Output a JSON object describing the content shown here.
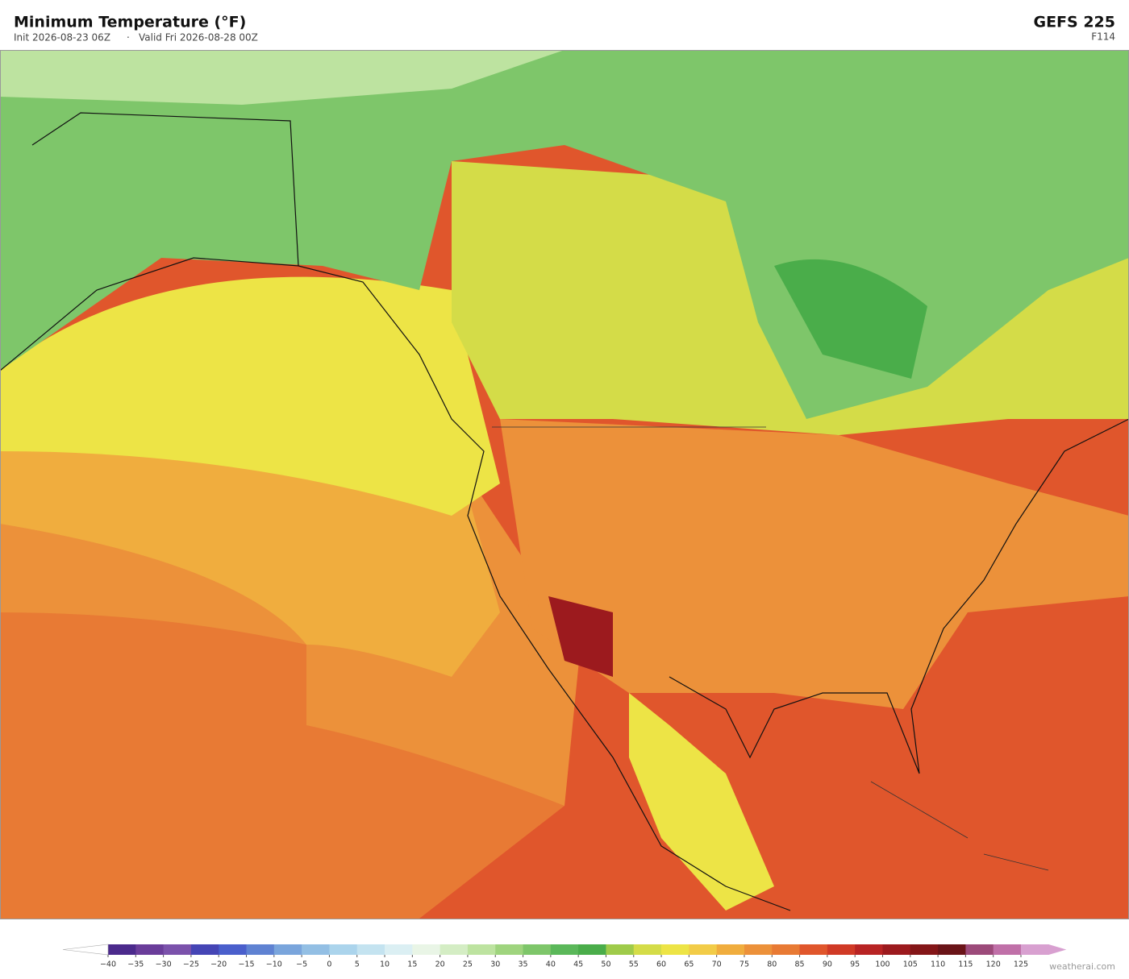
{
  "header": {
    "title": "Minimum Temperature  (°F)",
    "init": "Init 2026-08-23 06Z",
    "separator": "·",
    "valid": "Valid Fri 2026-08-28 00Z",
    "model": "GEFS  225",
    "forecast_hour": "F114"
  },
  "colorbar": {
    "ticks": [
      {
        "value": -40,
        "label": "−40"
      },
      {
        "value": -35,
        "label": "−35"
      },
      {
        "value": -30,
        "label": "−30"
      },
      {
        "value": -25,
        "label": "−25"
      },
      {
        "value": -20,
        "label": "−20"
      },
      {
        "value": -15,
        "label": "−15"
      },
      {
        "value": -10,
        "label": "−10"
      },
      {
        "value": -5,
        "label": "−5"
      },
      0,
      5,
      10,
      15,
      20,
      25,
      30,
      35,
      40,
      45,
      50,
      55,
      60,
      65,
      70,
      75,
      80,
      85,
      90,
      95,
      100,
      105,
      110,
      115,
      120,
      125
    ],
    "colors": [
      "#4b2a8c",
      "#6a3d9a",
      "#7b52ab",
      "#4545b5",
      "#4a5fcc",
      "#5f82d2",
      "#7aa5dc",
      "#93bfe4",
      "#abd4ec",
      "#c4e3f0",
      "#dbeff3",
      "#e9f5e6",
      "#d4edc4",
      "#bde3a0",
      "#9fd47e",
      "#7ec66a",
      "#5bb85a",
      "#4aad4a",
      "#9fcb4a",
      "#d4dc48",
      "#ede446",
      "#f2cc48",
      "#f0ad3e",
      "#ec913a",
      "#e87a34",
      "#e0562c",
      "#d03a26",
      "#b82424",
      "#9c1a1e",
      "#841618",
      "#6a1418",
      "#9c4a7a",
      "#c070a8",
      "#d8a0d0"
    ],
    "under_color": "#ffffff",
    "over_color": "#d8a0d0"
  },
  "footer": {
    "watermark": "weatherai.com"
  }
}
